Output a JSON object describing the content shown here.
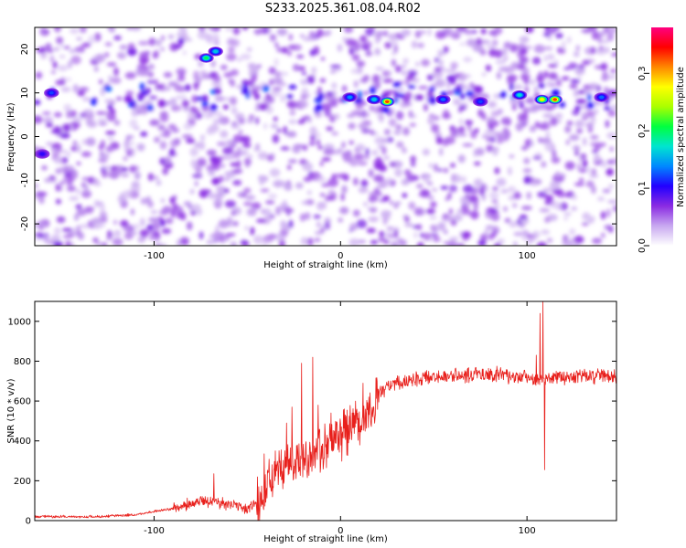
{
  "page": {
    "title": "S233.2025.361.08.04.R02"
  },
  "chart_data": [
    {
      "type": "heatmap",
      "title": "S233.2025.361.08.04.R02",
      "xlabel": "Height of straight line (km)",
      "ylabel": "Frequency (Hz)",
      "xlim": [
        -164,
        148
      ],
      "ylim": [
        -25,
        25
      ],
      "xticks": [
        -100,
        0,
        100
      ],
      "yticks": [
        -20,
        -10,
        0,
        10,
        20
      ],
      "colorbar": {
        "label": "Normalized spectral amplitude",
        "range": [
          0,
          0.38
        ],
        "ticks": [
          0.0,
          0.1,
          0.2,
          0.3
        ],
        "colors": [
          "#ffffff",
          "#c8a8f0",
          "#8a2be2",
          "#2200ff",
          "#0088ff",
          "#00e5d0",
          "#00ff40",
          "#aaff00",
          "#ffff00",
          "#ff8800",
          "#ff0000",
          "#ff0080"
        ]
      },
      "background_level": 0.06,
      "highlights": [
        {
          "x": 25,
          "y": 8,
          "amplitude": 0.33
        },
        {
          "x": 18,
          "y": 8.5,
          "amplitude": 0.16
        },
        {
          "x": 115,
          "y": 8.5,
          "amplitude": 0.33
        },
        {
          "x": 108,
          "y": 8.5,
          "amplitude": 0.28
        },
        {
          "x": 96,
          "y": 9.5,
          "amplitude": 0.17
        },
        {
          "x": -72,
          "y": 18,
          "amplitude": 0.2
        },
        {
          "x": -67,
          "y": 19.5,
          "amplitude": 0.16
        },
        {
          "x": 5,
          "y": 9,
          "amplitude": 0.14
        },
        {
          "x": 55,
          "y": 8.5,
          "amplitude": 0.13
        },
        {
          "x": 75,
          "y": 8,
          "amplitude": 0.12
        },
        {
          "x": 140,
          "y": 9,
          "amplitude": 0.13
        },
        {
          "x": -155,
          "y": 10,
          "amplitude": 0.12
        },
        {
          "x": -160,
          "y": -4,
          "amplitude": 0.1
        }
      ]
    },
    {
      "type": "line",
      "xlabel": "Height of straight line (km)",
      "ylabel": "SNR (10 * v/v)",
      "xlim": [
        -164,
        148
      ],
      "ylim": [
        0,
        1100
      ],
      "xticks": [
        -100,
        0,
        100
      ],
      "yticks": [
        0,
        200,
        400,
        600,
        800,
        1000
      ],
      "series": [
        {
          "name": "SNR",
          "color": "#e8201c",
          "envelope": [
            {
              "x": -164,
              "y": 20
            },
            {
              "x": -130,
              "y": 20
            },
            {
              "x": -110,
              "y": 30
            },
            {
              "x": -90,
              "y": 60
            },
            {
              "x": -75,
              "y": 100
            },
            {
              "x": -60,
              "y": 85
            },
            {
              "x": -50,
              "y": 60
            },
            {
              "x": -43,
              "y": 95
            },
            {
              "x": -38,
              "y": 190
            },
            {
              "x": -30,
              "y": 260
            },
            {
              "x": -20,
              "y": 310
            },
            {
              "x": -10,
              "y": 360
            },
            {
              "x": 0,
              "y": 420
            },
            {
              "x": 10,
              "y": 480
            },
            {
              "x": 15,
              "y": 560
            },
            {
              "x": 22,
              "y": 650
            },
            {
              "x": 30,
              "y": 690
            },
            {
              "x": 45,
              "y": 715
            },
            {
              "x": 60,
              "y": 730
            },
            {
              "x": 80,
              "y": 735
            },
            {
              "x": 100,
              "y": 720
            },
            {
              "x": 105,
              "y": 700
            },
            {
              "x": 112,
              "y": 720
            },
            {
              "x": 130,
              "y": 725
            },
            {
              "x": 148,
              "y": 725
            }
          ],
          "spikes": [
            {
              "x": -68,
              "y": 235
            },
            {
              "x": -41,
              "y": 335
            },
            {
              "x": -35,
              "y": 350
            },
            {
              "x": -29,
              "y": 490
            },
            {
              "x": -26,
              "y": 570
            },
            {
              "x": -21,
              "y": 790
            },
            {
              "x": -15,
              "y": 820
            },
            {
              "x": -12,
              "y": 580
            },
            {
              "x": -5,
              "y": 540
            },
            {
              "x": 2,
              "y": 560
            },
            {
              "x": 8,
              "y": 600
            },
            {
              "x": 12,
              "y": 690
            },
            {
              "x": 105,
              "y": 830
            },
            {
              "x": 107,
              "y": 1040
            },
            {
              "x": 108.5,
              "y": 1100
            },
            {
              "x": 109.5,
              "y": 255
            }
          ]
        }
      ]
    }
  ]
}
